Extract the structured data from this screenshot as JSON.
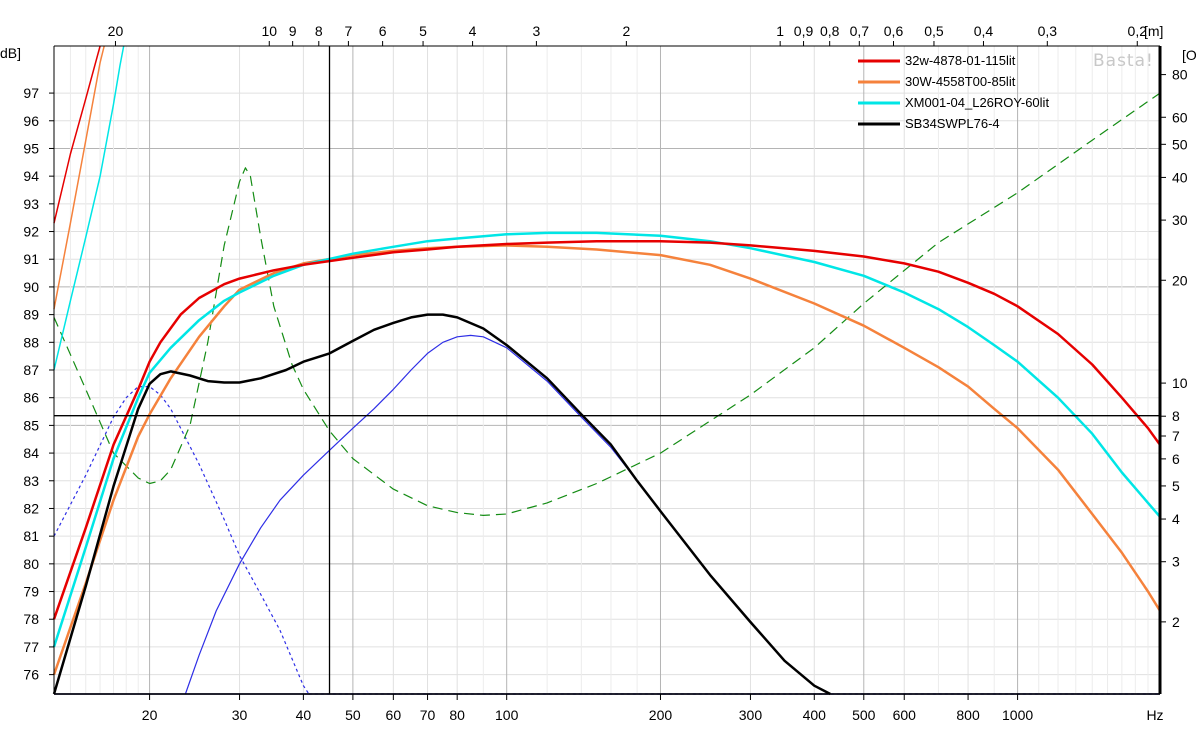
{
  "chart_data": {
    "type": "line",
    "title": "",
    "xlabel": "Hz",
    "ylabel": "dB]",
    "y2label": "[O",
    "top_axis_unit": "[m]",
    "watermark": "Basta!",
    "x_scale": "log",
    "xlim": [
      13,
      1900
    ],
    "ylim": [
      75.3,
      98.7
    ],
    "y2_scale": "log",
    "y2lim": [
      1.23,
      97.0
    ],
    "grid": true,
    "legend_position": "top-right",
    "x_ticks": [
      {
        "v": 20,
        "label": "20"
      },
      {
        "v": 30,
        "label": "30"
      },
      {
        "v": 40,
        "label": "40"
      },
      {
        "v": 50,
        "label": "50"
      },
      {
        "v": 60,
        "label": "60"
      },
      {
        "v": 70,
        "label": "70"
      },
      {
        "v": 80,
        "label": "80"
      },
      {
        "v": 100,
        "label": "100"
      },
      {
        "v": 200,
        "label": "200"
      },
      {
        "v": 300,
        "label": "300"
      },
      {
        "v": 400,
        "label": "400"
      },
      {
        "v": 500,
        "label": "500"
      },
      {
        "v": 600,
        "label": "600"
      },
      {
        "v": 800,
        "label": "800"
      },
      {
        "v": 1000,
        "label": "1000"
      }
    ],
    "x_minor": [
      14,
      15,
      16,
      17,
      18,
      19,
      90,
      120,
      140,
      160,
      180,
      700,
      900,
      1100,
      1200,
      1300,
      1400,
      1500,
      1600,
      1700,
      1800
    ],
    "top_ticks": [
      {
        "m": 20,
        "label": "20"
      },
      {
        "m": 10,
        "label": "10"
      },
      {
        "m": 9,
        "label": "9"
      },
      {
        "m": 8,
        "label": "8"
      },
      {
        "m": 7,
        "label": "7"
      },
      {
        "m": 6,
        "label": "6"
      },
      {
        "m": 5,
        "label": "5"
      },
      {
        "m": 4,
        "label": "4"
      },
      {
        "m": 3,
        "label": "3"
      },
      {
        "m": 2,
        "label": "2"
      },
      {
        "m": 1,
        "label": "1"
      },
      {
        "m": 0.9,
        "label": "0,9"
      },
      {
        "m": 0.8,
        "label": "0,8"
      },
      {
        "m": 0.7,
        "label": "0,7"
      },
      {
        "m": 0.6,
        "label": "0,6"
      },
      {
        "m": 0.5,
        "label": "0,5"
      },
      {
        "m": 0.4,
        "label": "0,4"
      },
      {
        "m": 0.3,
        "label": "0,3"
      },
      {
        "m": 0.2,
        "label": "0,2"
      }
    ],
    "y_ticks": [
      76,
      77,
      78,
      79,
      80,
      81,
      82,
      83,
      84,
      85,
      86,
      87,
      88,
      89,
      90,
      91,
      92,
      93,
      94,
      95,
      96,
      97
    ],
    "y2_ticks": [
      2,
      3,
      4,
      5,
      6,
      7,
      8,
      10,
      20,
      30,
      40,
      50,
      60,
      80
    ],
    "cursor": {
      "x": 45,
      "y": 85.35
    },
    "series": [
      {
        "name": "32w-4878-01-115lit",
        "color": "#e60000",
        "width": 2.5,
        "points": [
          [
            13,
            92.3
          ],
          [
            14,
            94.8
          ],
          [
            15,
            96.8
          ],
          [
            16,
            98.7
          ]
        ],
        "points_b": [
          [
            13,
            78.0
          ],
          [
            15,
            81.3
          ],
          [
            17,
            84.3
          ],
          [
            19,
            86.3
          ],
          [
            20,
            87.3
          ],
          [
            21,
            88.0
          ],
          [
            23,
            89.0
          ],
          [
            25,
            89.6
          ],
          [
            28,
            90.1
          ],
          [
            30,
            90.3
          ],
          [
            35,
            90.6
          ],
          [
            40,
            90.8
          ],
          [
            50,
            91.05
          ],
          [
            60,
            91.25
          ],
          [
            70,
            91.35
          ],
          [
            80,
            91.45
          ],
          [
            100,
            91.55
          ],
          [
            120,
            91.6
          ],
          [
            150,
            91.65
          ],
          [
            200,
            91.65
          ],
          [
            250,
            91.6
          ],
          [
            300,
            91.5
          ],
          [
            400,
            91.3
          ],
          [
            500,
            91.1
          ],
          [
            600,
            90.85
          ],
          [
            700,
            90.55
          ],
          [
            800,
            90.15
          ],
          [
            900,
            89.75
          ],
          [
            1000,
            89.3
          ],
          [
            1200,
            88.3
          ],
          [
            1400,
            87.2
          ],
          [
            1600,
            86.0
          ],
          [
            1800,
            84.9
          ],
          [
            1900,
            84.3
          ]
        ]
      },
      {
        "name": "30W-4558T00-85lit",
        "color": "#f5823c",
        "width": 2.5,
        "points": [
          [
            13,
            89.2
          ],
          [
            14,
            92.3
          ],
          [
            15,
            95.3
          ],
          [
            16,
            98.1
          ],
          [
            16.3,
            98.7
          ]
        ],
        "points_b": [
          [
            13,
            76.0
          ],
          [
            15,
            79.3
          ],
          [
            17,
            82.3
          ],
          [
            19,
            84.6
          ],
          [
            20,
            85.4
          ],
          [
            22,
            86.7
          ],
          [
            25,
            88.2
          ],
          [
            28,
            89.3
          ],
          [
            30,
            89.9
          ],
          [
            35,
            90.5
          ],
          [
            40,
            90.85
          ],
          [
            50,
            91.15
          ],
          [
            60,
            91.3
          ],
          [
            70,
            91.4
          ],
          [
            80,
            91.45
          ],
          [
            100,
            91.5
          ],
          [
            120,
            91.45
          ],
          [
            150,
            91.35
          ],
          [
            200,
            91.15
          ],
          [
            250,
            90.8
          ],
          [
            300,
            90.3
          ],
          [
            400,
            89.4
          ],
          [
            500,
            88.6
          ],
          [
            600,
            87.8
          ],
          [
            700,
            87.1
          ],
          [
            800,
            86.4
          ],
          [
            900,
            85.6
          ],
          [
            1000,
            84.9
          ],
          [
            1200,
            83.4
          ],
          [
            1400,
            81.8
          ],
          [
            1600,
            80.4
          ],
          [
            1800,
            79.0
          ],
          [
            1900,
            78.3
          ]
        ]
      },
      {
        "name": "XM001-04_L26ROY-60lit",
        "color": "#00e6e6",
        "width": 2.5,
        "points": [
          [
            13,
            87.0
          ],
          [
            14,
            89.5
          ],
          [
            15,
            91.8
          ],
          [
            16,
            94.0
          ],
          [
            17,
            96.6
          ],
          [
            17.5,
            98.0
          ],
          [
            17.8,
            98.7
          ]
        ],
        "points_b": [
          [
            13,
            77.0
          ],
          [
            15,
            80.6
          ],
          [
            17,
            83.8
          ],
          [
            19,
            86.0
          ],
          [
            20,
            86.9
          ],
          [
            22,
            87.8
          ],
          [
            25,
            88.8
          ],
          [
            28,
            89.5
          ],
          [
            30,
            89.8
          ],
          [
            35,
            90.4
          ],
          [
            40,
            90.8
          ],
          [
            50,
            91.2
          ],
          [
            60,
            91.45
          ],
          [
            70,
            91.65
          ],
          [
            80,
            91.75
          ],
          [
            100,
            91.9
          ],
          [
            120,
            91.95
          ],
          [
            150,
            91.95
          ],
          [
            200,
            91.85
          ],
          [
            250,
            91.65
          ],
          [
            300,
            91.4
          ],
          [
            400,
            90.9
          ],
          [
            500,
            90.4
          ],
          [
            600,
            89.8
          ],
          [
            700,
            89.2
          ],
          [
            800,
            88.55
          ],
          [
            900,
            87.9
          ],
          [
            1000,
            87.3
          ],
          [
            1200,
            86.0
          ],
          [
            1400,
            84.7
          ],
          [
            1600,
            83.3
          ],
          [
            1800,
            82.2
          ],
          [
            1900,
            81.7
          ]
        ]
      },
      {
        "name": "SB34SWPL76-4",
        "color": "#000000",
        "width": 2.5,
        "points": [
          [
            13,
            75.3
          ],
          [
            15,
            79.2
          ],
          [
            17,
            82.8
          ],
          [
            19,
            85.6
          ],
          [
            20,
            86.5
          ],
          [
            21,
            86.85
          ],
          [
            22,
            86.95
          ],
          [
            24,
            86.8
          ],
          [
            26,
            86.6
          ],
          [
            28,
            86.55
          ],
          [
            30,
            86.55
          ],
          [
            33,
            86.7
          ],
          [
            37,
            87.0
          ],
          [
            40,
            87.3
          ],
          [
            45,
            87.6
          ],
          [
            50,
            88.05
          ],
          [
            55,
            88.45
          ],
          [
            60,
            88.7
          ],
          [
            65,
            88.9
          ],
          [
            70,
            89.0
          ],
          [
            75,
            89.0
          ],
          [
            80,
            88.9
          ],
          [
            90,
            88.5
          ],
          [
            100,
            87.9
          ],
          [
            120,
            86.7
          ],
          [
            140,
            85.4
          ],
          [
            160,
            84.3
          ],
          [
            180,
            83.0
          ],
          [
            200,
            81.9
          ],
          [
            250,
            79.6
          ],
          [
            300,
            77.9
          ],
          [
            350,
            76.5
          ],
          [
            400,
            75.6
          ],
          [
            430,
            75.3
          ]
        ]
      }
    ],
    "aux_series": [
      {
        "color": "#2e2ee6",
        "width": 1.2,
        "dash": "",
        "points": [
          [
            23.5,
            75.3
          ],
          [
            25,
            76.7
          ],
          [
            27,
            78.3
          ],
          [
            30,
            80.0
          ],
          [
            33,
            81.3
          ],
          [
            36,
            82.3
          ],
          [
            40,
            83.2
          ],
          [
            45,
            84.1
          ],
          [
            50,
            84.9
          ],
          [
            55,
            85.6
          ],
          [
            60,
            86.3
          ],
          [
            65,
            87.0
          ],
          [
            70,
            87.6
          ],
          [
            75,
            88.0
          ],
          [
            80,
            88.2
          ],
          [
            85,
            88.25
          ],
          [
            90,
            88.2
          ],
          [
            100,
            87.8
          ],
          [
            120,
            86.6
          ],
          [
            140,
            85.3
          ],
          [
            160,
            84.2
          ],
          [
            180,
            83.0
          ],
          [
            200,
            81.9
          ],
          [
            250,
            79.6
          ],
          [
            300,
            77.9
          ],
          [
            350,
            76.5
          ],
          [
            400,
            75.6
          ],
          [
            430,
            75.3
          ]
        ]
      },
      {
        "color": "#2e2ee6",
        "width": 1.2,
        "dash": "3,3",
        "points": [
          [
            13,
            81.0
          ],
          [
            15,
            83.2
          ],
          [
            17,
            85.3
          ],
          [
            18,
            86.0
          ],
          [
            19,
            86.4
          ],
          [
            20,
            86.4
          ],
          [
            21,
            86.1
          ],
          [
            22,
            85.6
          ],
          [
            25,
            83.6
          ],
          [
            28,
            81.6
          ],
          [
            30,
            80.3
          ],
          [
            33,
            78.9
          ],
          [
            36,
            77.6
          ],
          [
            40,
            75.6
          ],
          [
            41,
            75.3
          ]
        ]
      },
      {
        "color": "#2e2ee6",
        "width": 1.2,
        "dash": "3,3",
        "points": [
          [
            41,
            75.3
          ],
          [
            1900,
            75.3
          ]
        ]
      },
      {
        "color": "#1a1a7a",
        "width": 1.5,
        "dash": "",
        "points": [
          [
            13,
            75.3
          ],
          [
            1900,
            75.3
          ]
        ]
      },
      {
        "color": "#148c14",
        "width": 1.2,
        "dash": "10,6",
        "points": [
          [
            13,
            88.9
          ],
          [
            15,
            86.3
          ],
          [
            17,
            84.0
          ],
          [
            19,
            83.1
          ],
          [
            20,
            82.9
          ],
          [
            21,
            83.0
          ],
          [
            22,
            83.4
          ],
          [
            24,
            85.0
          ],
          [
            26,
            88.0
          ],
          [
            28,
            91.5
          ],
          [
            30,
            93.8
          ],
          [
            30.8,
            94.3
          ],
          [
            31.5,
            94.0
          ],
          [
            33,
            91.8
          ],
          [
            35,
            89.3
          ],
          [
            38,
            87.2
          ],
          [
            40,
            86.3
          ],
          [
            45,
            84.8
          ],
          [
            50,
            83.8
          ],
          [
            60,
            82.7
          ],
          [
            70,
            82.1
          ],
          [
            80,
            81.85
          ],
          [
            90,
            81.75
          ],
          [
            100,
            81.8
          ],
          [
            120,
            82.2
          ],
          [
            150,
            82.9
          ],
          [
            200,
            84.0
          ],
          [
            300,
            86.1
          ],
          [
            400,
            87.8
          ],
          [
            500,
            89.4
          ],
          [
            700,
            91.6
          ],
          [
            1000,
            93.4
          ],
          [
            1400,
            95.3
          ],
          [
            1900,
            97.0
          ]
        ]
      }
    ]
  },
  "legend": {
    "items": [
      {
        "label": "32w-4878-01-115lit",
        "color": "#e60000"
      },
      {
        "label": "30W-4558T00-85lit",
        "color": "#f5823c"
      },
      {
        "label": "XM001-04_L26ROY-60lit",
        "color": "#00e6e6"
      },
      {
        "label": "SB34SWPL76-4",
        "color": "#000000"
      }
    ]
  }
}
